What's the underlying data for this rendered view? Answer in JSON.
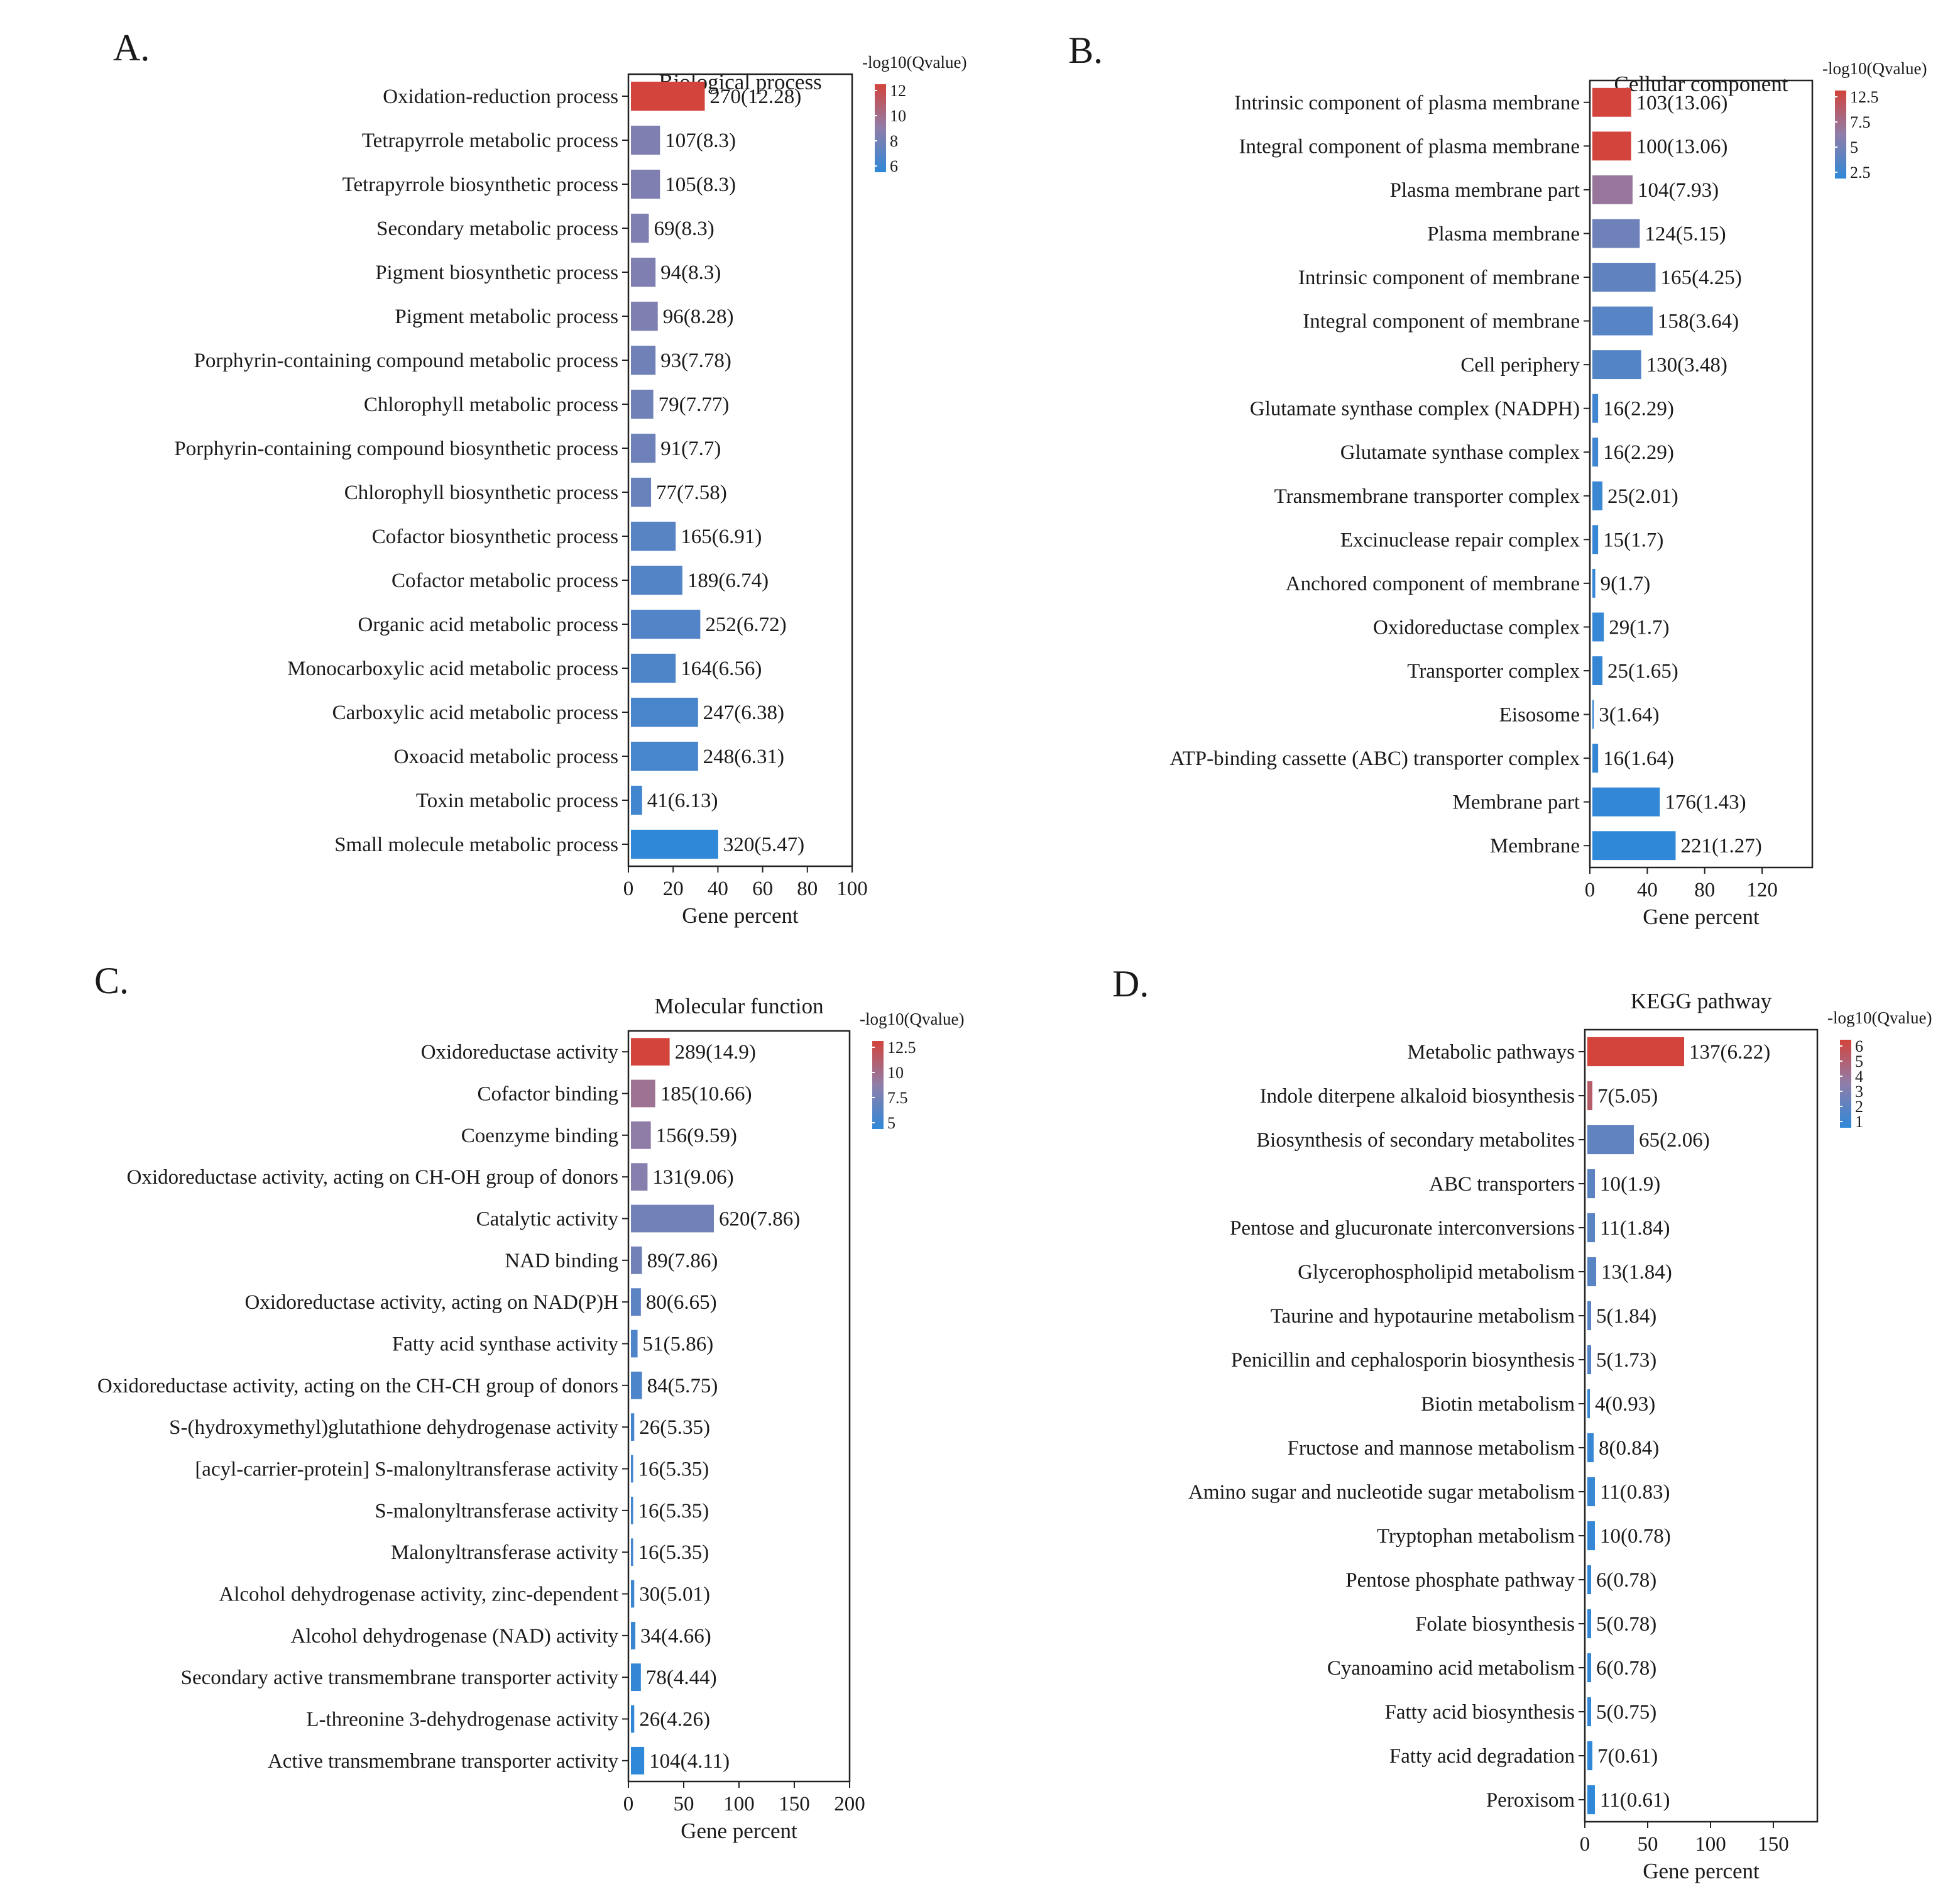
{
  "chart_data": [
    {
      "panel_label": "A.",
      "type": "bar",
      "orientation": "horizontal",
      "title": "Biological process",
      "xlabel": "Gene percent",
      "xlim": [
        0,
        100
      ],
      "xticks": [
        0,
        20,
        40,
        60,
        80,
        100
      ],
      "legend": {
        "title": "-log10(Qvalue)",
        "ticks": [
          12,
          10,
          8,
          6
        ],
        "range": [
          5.47,
          12.28
        ],
        "placement": "right"
      },
      "colors": {
        "low": "#2f88d8",
        "mid": "#8f7ea9",
        "high": "#d2443c"
      },
      "categories": [
        "Oxidation-reduction process",
        "Tetrapyrrole metabolic process",
        "Tetrapyrrole biosynthetic process",
        "Secondary metabolic process",
        "Pigment biosynthetic process",
        "Pigment metabolic process",
        "Porphyrin-containing compound metabolic process",
        "Chlorophyll metabolic process",
        "Porphyrin-containing compound biosynthetic process",
        "Chlorophyll biosynthetic process",
        "Cofactor biosynthetic process",
        "Cofactor metabolic process",
        "Organic acid metabolic process",
        "Monocarboxylic acid metabolic process",
        "Carboxylic acid metabolic process",
        "Oxoacid metabolic process",
        "Toxin metabolic process",
        "Small molecule metabolic process"
      ],
      "values": [
        33,
        13,
        13,
        8,
        11,
        12,
        11,
        10,
        11,
        9,
        20,
        23,
        31,
        20,
        30,
        30,
        5,
        39
      ],
      "qvalues": [
        12.28,
        8.3,
        8.3,
        8.3,
        8.3,
        8.28,
        7.78,
        7.77,
        7.7,
        7.58,
        6.91,
        6.74,
        6.72,
        6.56,
        6.38,
        6.31,
        6.13,
        5.47
      ],
      "labels": [
        "270(12.28)",
        "107(8.3)",
        "105(8.3)",
        "69(8.3)",
        "94(8.3)",
        "96(8.28)",
        "93(7.78)",
        "79(7.77)",
        "91(7.7)",
        "77(7.58)",
        "165(6.91)",
        "189(6.74)",
        "252(6.72)",
        "164(6.56)",
        "247(6.38)",
        "248(6.31)",
        "41(6.13)",
        "320(5.47)"
      ]
    },
    {
      "panel_label": "B.",
      "type": "bar",
      "orientation": "horizontal",
      "title": "Cellular component",
      "xlabel": "Gene percent",
      "xlim": [
        0,
        155
      ],
      "xticks": [
        0,
        40,
        80,
        120
      ],
      "legend": {
        "title": "-log10(Qvalue)",
        "ticks": [
          12.5,
          7.5,
          5,
          2.5
        ],
        "range": [
          1.27,
          13.06
        ],
        "placement": "right"
      },
      "colors": {
        "low": "#2f88d8",
        "mid": "#8f7ea9",
        "high": "#d2443c"
      },
      "categories": [
        "Intrinsic component of plasma membrane",
        "Integral component of plasma membrane",
        "Plasma membrane part",
        "Plasma membrane",
        "Intrinsic component of membrane",
        "Integral component of membrane",
        "Cell periphery",
        "Glutamate synthase complex (NADPH)",
        "Glutamate synthase complex",
        "Transmembrane transporter complex",
        "Excinuclease repair complex",
        "Anchored component of membrane",
        "Oxidoreductase complex",
        "Transporter complex",
        "Eisosome",
        "ATP-binding cassette (ABC) transporter complex",
        "Membrane part",
        "Membrane"
      ],
      "values": [
        27,
        27,
        28,
        33,
        44,
        42,
        34,
        4,
        4,
        7,
        4,
        2,
        8,
        7,
        1,
        4,
        47,
        58
      ],
      "qvalues": [
        13.06,
        13.06,
        7.93,
        5.15,
        4.25,
        3.64,
        3.48,
        2.29,
        2.29,
        2.01,
        1.7,
        1.7,
        1.7,
        1.65,
        1.64,
        1.64,
        1.43,
        1.27
      ],
      "labels": [
        "103(13.06)",
        "100(13.06)",
        "104(7.93)",
        "124(5.15)",
        "165(4.25)",
        "158(3.64)",
        "130(3.48)",
        "16(2.29)",
        "16(2.29)",
        "25(2.01)",
        "15(1.7)",
        "9(1.7)",
        "29(1.7)",
        "25(1.65)",
        "3(1.64)",
        "16(1.64)",
        "176(1.43)",
        "221(1.27)"
      ]
    },
    {
      "panel_label": "C.",
      "type": "bar",
      "orientation": "horizontal",
      "title": "Molecular function",
      "xlabel": "Gene percent",
      "xlim": [
        0,
        200
      ],
      "xticks": [
        0,
        50,
        100,
        150,
        200
      ],
      "legend": {
        "title": "-log10(Qvalue)",
        "ticks": [
          12.5,
          10,
          7.5,
          5
        ],
        "range": [
          4.11,
          14.9
        ],
        "placement": "right"
      },
      "colors": {
        "low": "#2f88d8",
        "mid": "#8f7ea9",
        "high": "#d2443c"
      },
      "categories": [
        "Oxidoreductase activity",
        "Cofactor binding",
        "Coenzyme binding",
        "Oxidoreductase activity, acting on CH-OH group of donors",
        "Catalytic activity",
        "NAD binding",
        "Oxidoreductase activity, acting on NAD(P)H",
        "Fatty acid synthase activity",
        "Oxidoreductase activity, acting on the CH-CH group of donors",
        "S-(hydroxymethyl)glutathione dehydrogenase activity",
        "[acyl-carrier-protein] S-malonyltransferase activity",
        "S-malonyltransferase activity",
        "Malonyltransferase activity",
        "Alcohol dehydrogenase activity, zinc-dependent",
        "Alcohol dehydrogenase (NAD) activity",
        "Secondary active transmembrane transporter activity",
        "L-threonine 3-dehydrogenase activity",
        "Active transmembrane transporter activity"
      ],
      "values": [
        35,
        22,
        18,
        15,
        75,
        10,
        9,
        6,
        10,
        3,
        2,
        2,
        2,
        3,
        4,
        9,
        3,
        12
      ],
      "qvalues": [
        14.9,
        10.66,
        9.59,
        9.06,
        7.86,
        7.86,
        6.65,
        5.86,
        5.75,
        5.35,
        5.35,
        5.35,
        5.35,
        5.01,
        4.66,
        4.44,
        4.26,
        4.11
      ],
      "labels": [
        "289(14.9)",
        "185(10.66)",
        "156(9.59)",
        "131(9.06)",
        "620(7.86)",
        "89(7.86)",
        "80(6.65)",
        "51(5.86)",
        "84(5.75)",
        "26(5.35)",
        "16(5.35)",
        "16(5.35)",
        "16(5.35)",
        "30(5.01)",
        "34(4.66)",
        "78(4.44)",
        "26(4.26)",
        "104(4.11)"
      ]
    },
    {
      "panel_label": "D.",
      "type": "bar",
      "orientation": "horizontal",
      "title": "KEGG pathway",
      "xlabel": "Gene percent",
      "xlim": [
        0,
        185
      ],
      "xticks": [
        0,
        50,
        100,
        150
      ],
      "legend": {
        "title": "-log10(Qvalue)",
        "ticks": [
          6,
          5,
          4,
          3,
          2,
          1
        ],
        "range": [
          0.61,
          6.22
        ],
        "placement": "right"
      },
      "colors": {
        "low": "#2f88d8",
        "mid": "#8f7ea9",
        "high": "#d2443c"
      },
      "categories": [
        "Metabolic pathways",
        "Indole diterpene alkaloid biosynthesis",
        "Biosynthesis of secondary metabolites",
        "ABC transporters",
        "Pentose and glucuronate interconversions",
        "Glycerophospholipid metabolism",
        "Taurine and hypotaurine metabolism",
        "Penicillin and cephalosporin biosynthesis",
        "Biotin metabolism",
        "Fructose and mannose metabolism",
        "Amino sugar and nucleotide sugar metabolism",
        "Tryptophan metabolism",
        "Pentose phosphate pathway",
        "Folate biosynthesis",
        "Cyanoamino acid metabolism",
        "Fatty acid biosynthesis",
        "Fatty acid degradation",
        "Peroxisom"
      ],
      "values": [
        77,
        4,
        37,
        6,
        6,
        7,
        3,
        3,
        2,
        5,
        6,
        6,
        3,
        3,
        3,
        3,
        4,
        6
      ],
      "qvalues": [
        6.22,
        5.05,
        2.06,
        1.9,
        1.84,
        1.84,
        1.84,
        1.73,
        0.93,
        0.84,
        0.83,
        0.78,
        0.78,
        0.78,
        0.78,
        0.75,
        0.61,
        0.61
      ],
      "labels": [
        "137(6.22)",
        "7(5.05)",
        "65(2.06)",
        "10(1.9)",
        "11(1.84)",
        "13(1.84)",
        "5(1.84)",
        "5(1.73)",
        "4(0.93)",
        "8(0.84)",
        "11(0.83)",
        "10(0.78)",
        "6(0.78)",
        "5(0.78)",
        "6(0.78)",
        "5(0.75)",
        "7(0.61)",
        "11(0.61)"
      ]
    }
  ]
}
